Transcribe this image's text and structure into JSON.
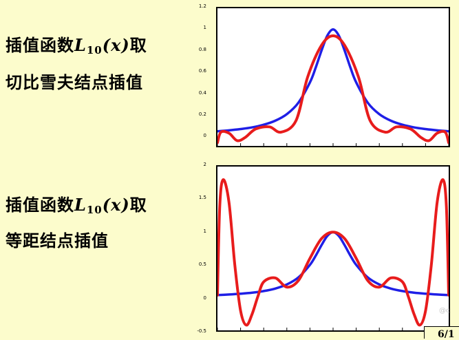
{
  "labels": {
    "top_line1_prefix": "插值函数",
    "top_math_letter": "L",
    "top_math_sub": "10",
    "top_math_arg": "(x)",
    "top_line1_suffix": "取",
    "top_line2": "切比雪夫结点插值",
    "bottom_line1_prefix": "插值函数",
    "bottom_math_letter": "L",
    "bottom_math_sub": "10",
    "bottom_math_arg": "(x)",
    "bottom_line1_suffix": "取",
    "bottom_line2": "等距结点插值"
  },
  "footer": {
    "page": "6/1",
    "watermark": "@c"
  },
  "colors": {
    "background": "#fcfccc",
    "runge": "#1f1fe6",
    "interp": "#e81c1c"
  },
  "chart_data": [
    {
      "type": "line",
      "title": "",
      "xlabel": "",
      "ylabel": "",
      "xlim": [
        -5,
        5
      ],
      "ylim": [
        -0.1,
        1.2
      ],
      "yticks": [
        "1.2",
        "1",
        "0.8",
        "0.6",
        "0.4",
        "0.2",
        "0"
      ],
      "series": [
        {
          "color": "#1f1fe6",
          "x": [
            -5,
            -4.5,
            -4,
            -3.5,
            -3,
            -2.5,
            -2,
            -1.5,
            -1,
            -0.75,
            -0.5,
            -0.25,
            0,
            0.25,
            0.5,
            0.75,
            1,
            1.5,
            2,
            2.5,
            3,
            3.5,
            4,
            4.5,
            5
          ],
          "y": [
            0.038,
            0.047,
            0.059,
            0.075,
            0.1,
            0.138,
            0.2,
            0.308,
            0.5,
            0.64,
            0.8,
            0.941,
            1.0,
            0.941,
            0.8,
            0.64,
            0.5,
            0.308,
            0.2,
            0.138,
            0.1,
            0.075,
            0.059,
            0.047,
            0.038
          ]
        },
        {
          "color": "#e81c1c",
          "x": [
            -5,
            -4.85,
            -4.5,
            -4.15,
            -3.8,
            -3.35,
            -2.75,
            -2.25,
            -1.6,
            -1.1,
            -0.5,
            0,
            0.5,
            1.1,
            1.6,
            2.25,
            2.75,
            3.35,
            3.8,
            4.15,
            4.5,
            4.85,
            5
          ],
          "y": [
            -0.07,
            0.03,
            0.02,
            -0.05,
            -0.02,
            0.06,
            0.08,
            0.03,
            0.14,
            0.55,
            0.85,
            0.94,
            0.85,
            0.55,
            0.14,
            0.03,
            0.08,
            0.06,
            -0.02,
            -0.05,
            0.02,
            0.03,
            -0.07
          ]
        }
      ]
    },
    {
      "type": "line",
      "title": "",
      "xlabel": "",
      "ylabel": "",
      "xlim": [
        -5,
        5
      ],
      "ylim": [
        -0.5,
        2
      ],
      "yticks": [
        "2",
        "1.5",
        "1",
        "0.5",
        "0",
        "-0.5"
      ],
      "series": [
        {
          "color": "#1f1fe6",
          "x": [
            -5,
            -4.5,
            -4,
            -3.5,
            -3,
            -2.5,
            -2,
            -1.5,
            -1,
            -0.75,
            -0.5,
            -0.25,
            0,
            0.25,
            0.5,
            0.75,
            1,
            1.5,
            2,
            2.5,
            3,
            3.5,
            4,
            4.5,
            5
          ],
          "y": [
            0.038,
            0.047,
            0.059,
            0.075,
            0.1,
            0.138,
            0.2,
            0.308,
            0.5,
            0.64,
            0.8,
            0.941,
            1.0,
            0.941,
            0.8,
            0.64,
            0.5,
            0.308,
            0.2,
            0.138,
            0.1,
            0.075,
            0.059,
            0.047,
            0.038
          ]
        },
        {
          "color": "#e81c1c",
          "x": [
            -5,
            -4.9,
            -4.75,
            -4.5,
            -4.25,
            -4,
            -3.75,
            -3.5,
            -3.25,
            -3,
            -2.5,
            -2,
            -1.5,
            -1,
            -0.5,
            0,
            0.5,
            1,
            1.5,
            2,
            2.5,
            3,
            3.25,
            3.5,
            3.75,
            4,
            4.25,
            4.5,
            4.75,
            4.9,
            5
          ],
          "y": [
            0.038,
            1.4,
            1.8,
            1.45,
            0.5,
            -0.2,
            -0.42,
            -0.25,
            0.02,
            0.24,
            0.3,
            0.16,
            0.26,
            0.6,
            0.9,
            1.0,
            0.9,
            0.6,
            0.26,
            0.16,
            0.3,
            0.24,
            0.02,
            -0.25,
            -0.42,
            -0.2,
            0.5,
            1.45,
            1.8,
            1.4,
            0.038
          ]
        }
      ]
    }
  ]
}
